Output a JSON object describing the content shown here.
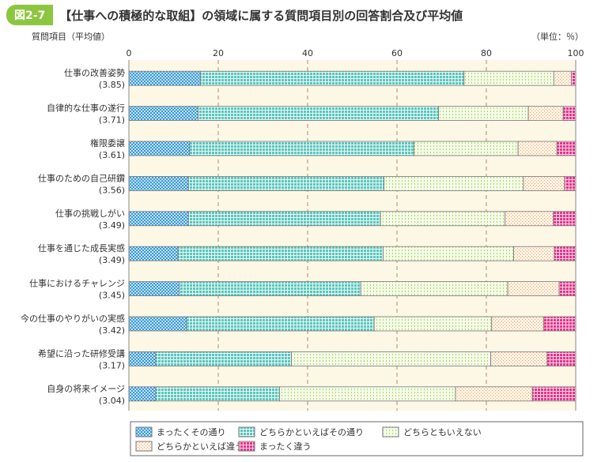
{
  "figure_label": "図2-7",
  "title": "【仕事への積極的な取組】の領域に属する質問項目別の回答割合及び平均値",
  "chart_data": {
    "type": "bar",
    "orientation": "horizontal-stacked",
    "title": "【仕事への積極的な取組】の領域に属する質問項目別の回答割合及び平均値",
    "ylabel": "質問項目（平均値）",
    "unit_label": "（単位：％）",
    "xlim": [
      0,
      100
    ],
    "xticks": [
      0,
      20,
      40,
      60,
      80,
      100
    ],
    "categories": [
      "仕事の改善姿勢",
      "自律的な仕事の遂行",
      "権限委譲",
      "仕事のための自己研鑽",
      "仕事の挑戦しがい",
      "仕事を通じた成長実感",
      "仕事におけるチャレンジ",
      "今の仕事のやりがいの実感",
      "希望に沿った研修受講",
      "自身の将来イメージ"
    ],
    "means": [
      "(3.85)",
      "(3.71)",
      "(3.61)",
      "(3.56)",
      "(3.49)",
      "(3.49)",
      "(3.45)",
      "(3.42)",
      "(3.17)",
      "(3.04)"
    ],
    "series": [
      {
        "name": "まったくその通り",
        "color": "#3a9ad9",
        "values": [
          16.0,
          15.5,
          13.6,
          13.3,
          13.3,
          11.0,
          11.3,
          12.9,
          6.0,
          6.0
        ]
      },
      {
        "name": "どちらかといえばその通り",
        "color": "#5cc6bd",
        "values": [
          59.0,
          53.8,
          50.2,
          43.8,
          43.0,
          45.9,
          40.6,
          42.0,
          30.4,
          27.7
        ]
      },
      {
        "name": "どちらともいえない",
        "color": "#a8d86a",
        "values": [
          20.1,
          20.1,
          23.3,
          31.2,
          27.9,
          29.2,
          32.9,
          26.3,
          44.6,
          39.4
        ]
      },
      {
        "name": "どちらかといえば違う",
        "color": "#f4a460",
        "values": [
          3.9,
          7.8,
          8.7,
          9.2,
          10.8,
          9.1,
          11.5,
          11.6,
          12.6,
          17.2
        ]
      },
      {
        "name": "まったく違う",
        "color": "#e6348c",
        "values": [
          1.0,
          2.8,
          4.2,
          2.5,
          5.0,
          4.8,
          3.7,
          7.2,
          6.4,
          9.7
        ]
      }
    ],
    "grid": true,
    "legend_position": "bottom"
  }
}
